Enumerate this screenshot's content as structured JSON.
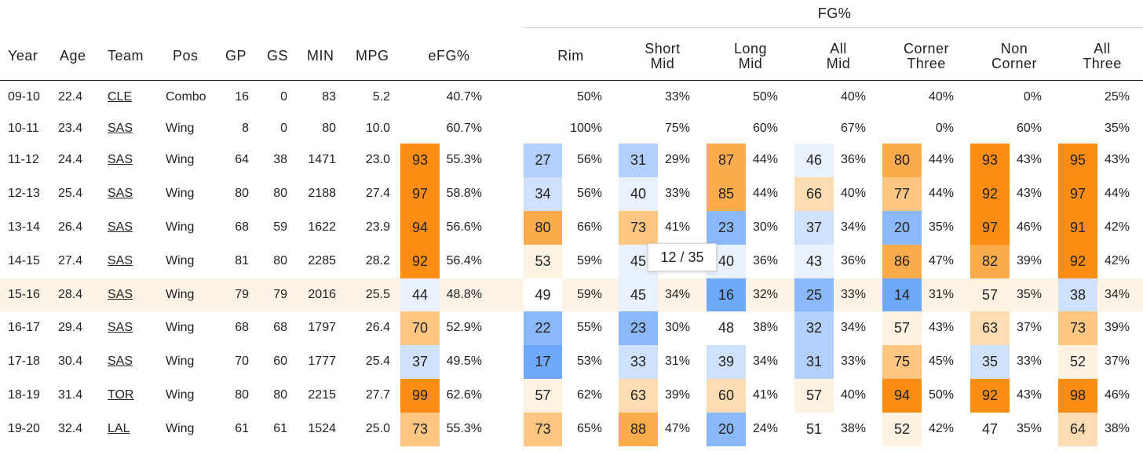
{
  "group_header": "FG%",
  "columns": {
    "year": "Year",
    "age": "Age",
    "team": "Team",
    "pos": "Pos",
    "gp": "GP",
    "gs": "GS",
    "min": "MIN",
    "mpg": "MPG",
    "efg": "eFG%",
    "rim": "Rim",
    "short_mid": [
      "Short",
      "Mid"
    ],
    "long_mid": [
      "Long",
      "Mid"
    ],
    "all_mid": [
      "All",
      "Mid"
    ],
    "corner_three": [
      "Corner",
      "Three"
    ],
    "non_corner": [
      "Non",
      "Corner"
    ],
    "all_three": [
      "All",
      "Three"
    ]
  },
  "tooltip": "12 / 35",
  "highlighted_row": "15-16",
  "colors": {
    "orange_strong": "#fb8c14",
    "orange_mid": "#fdbd6c",
    "orange_light": "#fddcb4",
    "blue_strong": "#6ea8f7",
    "blue_mid": "#a9cbfb",
    "blue_light": "#dce9fd",
    "row_highlight": "#fdf3e7"
  },
  "rows": [
    {
      "year": "09-10",
      "age": "22.4",
      "team": "CLE",
      "pos": "Combo",
      "gp": "16",
      "gs": "0",
      "min": "83",
      "mpg": "5.2",
      "efg": {
        "pct": null,
        "val": "40.7%"
      },
      "rim": {
        "pct": null,
        "val": "50%"
      },
      "short_mid": {
        "pct": null,
        "val": "33%"
      },
      "long_mid": {
        "pct": null,
        "val": "50%"
      },
      "all_mid": {
        "pct": null,
        "val": "40%"
      },
      "corner_three": {
        "pct": null,
        "val": "40%"
      },
      "non_corner": {
        "pct": null,
        "val": "0%"
      },
      "all_three": {
        "pct": null,
        "val": "25%"
      }
    },
    {
      "year": "10-11",
      "age": "23.4",
      "team": "SAS",
      "pos": "Wing",
      "gp": "8",
      "gs": "0",
      "min": "80",
      "mpg": "10.0",
      "efg": {
        "pct": null,
        "val": "60.7%"
      },
      "rim": {
        "pct": null,
        "val": "100%"
      },
      "short_mid": {
        "pct": null,
        "val": "75%"
      },
      "long_mid": {
        "pct": null,
        "val": "60%"
      },
      "all_mid": {
        "pct": null,
        "val": "67%"
      },
      "corner_three": {
        "pct": null,
        "val": "0%"
      },
      "non_corner": {
        "pct": null,
        "val": "60%"
      },
      "all_three": {
        "pct": null,
        "val": "35%"
      }
    },
    {
      "year": "11-12",
      "age": "24.4",
      "team": "SAS",
      "pos": "Wing",
      "gp": "64",
      "gs": "38",
      "min": "1471",
      "mpg": "23.0",
      "efg": {
        "pct": "93",
        "val": "55.3%"
      },
      "rim": {
        "pct": "27",
        "val": "56%"
      },
      "short_mid": {
        "pct": "31",
        "val": "29%"
      },
      "long_mid": {
        "pct": "87",
        "val": "44%"
      },
      "all_mid": {
        "pct": "46",
        "val": "36%"
      },
      "corner_three": {
        "pct": "80",
        "val": "44%"
      },
      "non_corner": {
        "pct": "93",
        "val": "43%"
      },
      "all_three": {
        "pct": "95",
        "val": "43%"
      }
    },
    {
      "year": "12-13",
      "age": "25.4",
      "team": "SAS",
      "pos": "Wing",
      "gp": "80",
      "gs": "80",
      "min": "2188",
      "mpg": "27.4",
      "efg": {
        "pct": "97",
        "val": "58.8%"
      },
      "rim": {
        "pct": "34",
        "val": "56%"
      },
      "short_mid": {
        "pct": "40",
        "val": "33%"
      },
      "long_mid": {
        "pct": "85",
        "val": "44%"
      },
      "all_mid": {
        "pct": "66",
        "val": "40%"
      },
      "corner_three": {
        "pct": "77",
        "val": "44%"
      },
      "non_corner": {
        "pct": "92",
        "val": "43%"
      },
      "all_three": {
        "pct": "97",
        "val": "44%"
      }
    },
    {
      "year": "13-14",
      "age": "26.4",
      "team": "SAS",
      "pos": "Wing",
      "gp": "68",
      "gs": "59",
      "min": "1622",
      "mpg": "23.9",
      "efg": {
        "pct": "94",
        "val": "56.6%"
      },
      "rim": {
        "pct": "80",
        "val": "66%"
      },
      "short_mid": {
        "pct": "73",
        "val": "41%"
      },
      "long_mid": {
        "pct": "23",
        "val": "30%"
      },
      "all_mid": {
        "pct": "37",
        "val": "34%"
      },
      "corner_three": {
        "pct": "20",
        "val": "35%"
      },
      "non_corner": {
        "pct": "97",
        "val": "46%"
      },
      "all_three": {
        "pct": "91",
        "val": "42%"
      }
    },
    {
      "year": "14-15",
      "age": "27.4",
      "team": "SAS",
      "pos": "Wing",
      "gp": "81",
      "gs": "80",
      "min": "2285",
      "mpg": "28.2",
      "efg": {
        "pct": "92",
        "val": "56.4%"
      },
      "rim": {
        "pct": "53",
        "val": "59%"
      },
      "short_mid": {
        "pct": "45",
        "val": ""
      },
      "long_mid": {
        "pct": "40",
        "val": "36%"
      },
      "all_mid": {
        "pct": "43",
        "val": "36%"
      },
      "corner_three": {
        "pct": "86",
        "val": "47%"
      },
      "non_corner": {
        "pct": "82",
        "val": "39%"
      },
      "all_three": {
        "pct": "92",
        "val": "42%"
      }
    },
    {
      "year": "15-16",
      "age": "28.4",
      "team": "SAS",
      "pos": "Wing",
      "gp": "79",
      "gs": "79",
      "min": "2016",
      "mpg": "25.5",
      "efg": {
        "pct": "44",
        "val": "48.8%"
      },
      "rim": {
        "pct": "49",
        "val": "59%"
      },
      "short_mid": {
        "pct": "45",
        "val": "34%"
      },
      "long_mid": {
        "pct": "16",
        "val": "32%"
      },
      "all_mid": {
        "pct": "25",
        "val": "33%"
      },
      "corner_three": {
        "pct": "14",
        "val": "31%"
      },
      "non_corner": {
        "pct": "57",
        "val": "35%"
      },
      "all_three": {
        "pct": "38",
        "val": "34%"
      }
    },
    {
      "year": "16-17",
      "age": "29.4",
      "team": "SAS",
      "pos": "Wing",
      "gp": "68",
      "gs": "68",
      "min": "1797",
      "mpg": "26.4",
      "efg": {
        "pct": "70",
        "val": "52.9%"
      },
      "rim": {
        "pct": "22",
        "val": "55%"
      },
      "short_mid": {
        "pct": "23",
        "val": "30%"
      },
      "long_mid": {
        "pct": "48",
        "val": "38%"
      },
      "all_mid": {
        "pct": "32",
        "val": "34%"
      },
      "corner_three": {
        "pct": "57",
        "val": "43%"
      },
      "non_corner": {
        "pct": "63",
        "val": "37%"
      },
      "all_three": {
        "pct": "73",
        "val": "39%"
      }
    },
    {
      "year": "17-18",
      "age": "30.4",
      "team": "SAS",
      "pos": "Wing",
      "gp": "70",
      "gs": "60",
      "min": "1777",
      "mpg": "25.4",
      "efg": {
        "pct": "37",
        "val": "49.5%"
      },
      "rim": {
        "pct": "17",
        "val": "53%"
      },
      "short_mid": {
        "pct": "33",
        "val": "31%"
      },
      "long_mid": {
        "pct": "39",
        "val": "34%"
      },
      "all_mid": {
        "pct": "31",
        "val": "33%"
      },
      "corner_three": {
        "pct": "75",
        "val": "45%"
      },
      "non_corner": {
        "pct": "35",
        "val": "33%"
      },
      "all_three": {
        "pct": "52",
        "val": "37%"
      }
    },
    {
      "year": "18-19",
      "age": "31.4",
      "team": "TOR",
      "pos": "Wing",
      "gp": "80",
      "gs": "80",
      "min": "2215",
      "mpg": "27.7",
      "efg": {
        "pct": "99",
        "val": "62.6%"
      },
      "rim": {
        "pct": "57",
        "val": "62%"
      },
      "short_mid": {
        "pct": "63",
        "val": "39%"
      },
      "long_mid": {
        "pct": "60",
        "val": "41%"
      },
      "all_mid": {
        "pct": "57",
        "val": "40%"
      },
      "corner_three": {
        "pct": "94",
        "val": "50%"
      },
      "non_corner": {
        "pct": "92",
        "val": "43%"
      },
      "all_three": {
        "pct": "98",
        "val": "46%"
      }
    },
    {
      "year": "19-20",
      "age": "32.4",
      "team": "LAL",
      "pos": "Wing",
      "gp": "61",
      "gs": "61",
      "min": "1524",
      "mpg": "25.0",
      "efg": {
        "pct": "73",
        "val": "55.3%"
      },
      "rim": {
        "pct": "73",
        "val": "65%"
      },
      "short_mid": {
        "pct": "88",
        "val": "47%"
      },
      "long_mid": {
        "pct": "20",
        "val": "24%"
      },
      "all_mid": {
        "pct": "51",
        "val": "38%"
      },
      "corner_three": {
        "pct": "52",
        "val": "42%"
      },
      "non_corner": {
        "pct": "47",
        "val": "35%"
      },
      "all_three": {
        "pct": "64",
        "val": "38%"
      }
    }
  ]
}
